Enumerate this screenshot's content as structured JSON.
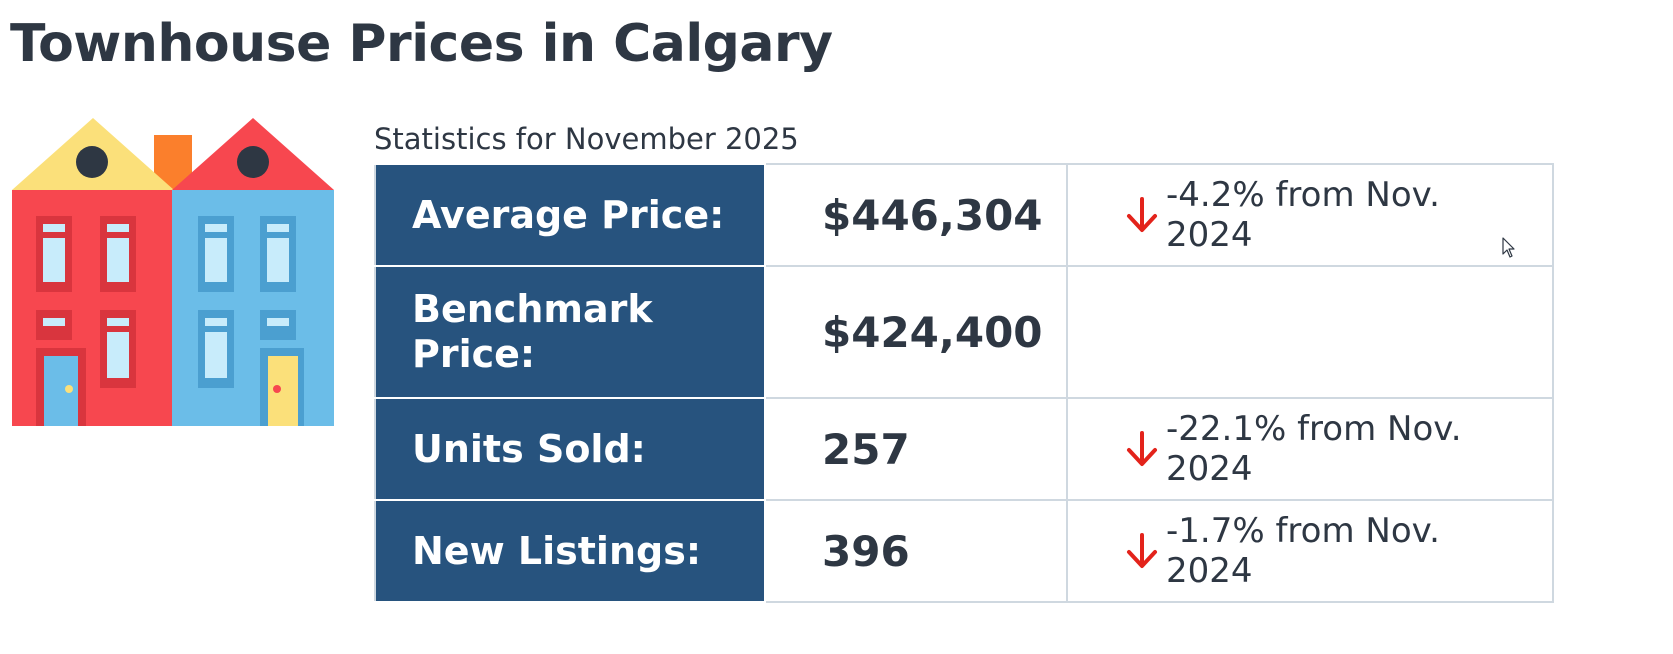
{
  "page": {
    "title": "Townhouse Prices in Calgary",
    "stats_caption": "Statistics for November 2025"
  },
  "illustration": {
    "icon": "townhouses-icon",
    "colors": {
      "left_wall": "#f7474f",
      "left_roof": "#fbe07a",
      "right_wall": "#6bbde8",
      "right_roof": "#f7474f",
      "chimney": "#fb7f2c",
      "window_glass": "#c8ecfb"
    }
  },
  "stats": {
    "rows": [
      {
        "label": "Average Price:",
        "value": "$446,304",
        "change": "-4.2% from Nov. 2024",
        "trend": "down"
      },
      {
        "label": "Benchmark Price:",
        "value": "$424,400",
        "change": "",
        "trend": ""
      },
      {
        "label": "Units Sold:",
        "value": "257",
        "change": "-22.1% from Nov. 2024",
        "trend": "down"
      },
      {
        "label": "New Listings:",
        "value": "396",
        "change": "-1.7% from Nov. 2024",
        "trend": "down"
      }
    ]
  },
  "colors": {
    "label_background": "#27537e",
    "label_text": "#ffffff",
    "body_text": "#2e3743",
    "grid_border": "#cfd8e0",
    "trend_down": "#e3231b"
  }
}
